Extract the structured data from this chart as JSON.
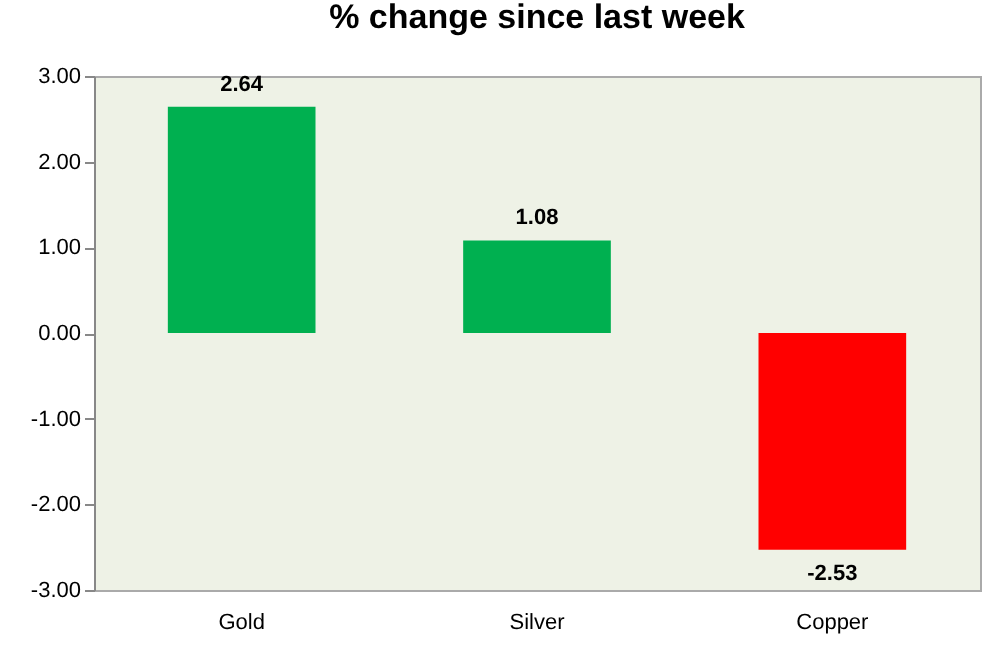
{
  "chart_data": {
    "type": "bar",
    "title": "% change since last week",
    "categories": [
      "Gold",
      "Silver",
      "Copper"
    ],
    "values": [
      2.64,
      1.08,
      -2.53
    ],
    "colors": [
      "#00b050",
      "#00b050",
      "#ff0000"
    ],
    "ylim": [
      -3,
      3
    ],
    "yticks": [
      {
        "value": -3,
        "label": "-3.00"
      },
      {
        "value": -2,
        "label": "-2.00"
      },
      {
        "value": -1,
        "label": "-1.00"
      },
      {
        "value": 0,
        "label": "0.00"
      },
      {
        "value": 1,
        "label": "1.00"
      },
      {
        "value": 2,
        "label": "2.00"
      },
      {
        "value": 3,
        "label": "3.00"
      }
    ],
    "data_labels": true,
    "grid": false
  }
}
